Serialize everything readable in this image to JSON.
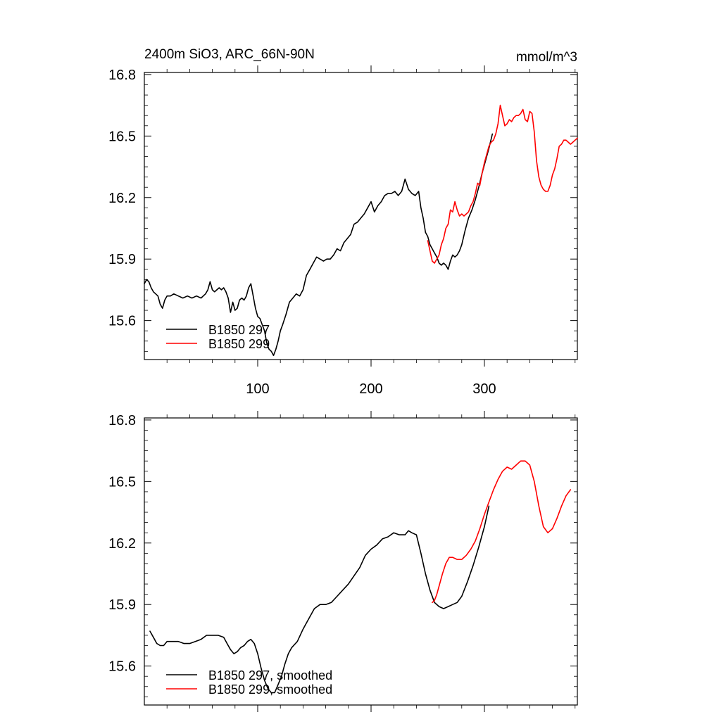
{
  "colors": {
    "black": "#000000",
    "red": "#ff0000",
    "background": "#ffffff"
  },
  "chart_data": [
    {
      "type": "line",
      "title_left": "2400m SiO3, ARC_66N-90N",
      "title_right": "mmol/m^3",
      "xlabel": "",
      "ylabel": "",
      "xlim": [
        0,
        382
      ],
      "ylim": [
        15.41,
        16.81
      ],
      "yticks": [
        "15.6",
        "15.9",
        "16.2",
        "16.5",
        "16.8"
      ],
      "xticks": [
        "100",
        "200",
        "300"
      ],
      "grid": false,
      "legend_position": "bottom-left",
      "series": [
        {
          "name": "B1850 297",
          "color": "#000000",
          "x": [
            0,
            2,
            4,
            6,
            8,
            10,
            12,
            14,
            16,
            18,
            20,
            23,
            26,
            30,
            34,
            38,
            42,
            46,
            50,
            54,
            56,
            58,
            60,
            62,
            64,
            66,
            68,
            70,
            72,
            74,
            76,
            78,
            80,
            82,
            84,
            86,
            88,
            90,
            92,
            94,
            96,
            98,
            100,
            102,
            104,
            106,
            108,
            110,
            112,
            114,
            116,
            118,
            120,
            122,
            125,
            128,
            131,
            134,
            137,
            140,
            143,
            146,
            149,
            152,
            155,
            158,
            161,
            164,
            167,
            170,
            173,
            176,
            179,
            182,
            185,
            188,
            191,
            194,
            197,
            200,
            203,
            206,
            209,
            212,
            215,
            218,
            221,
            224,
            227,
            230,
            233,
            236,
            239,
            242,
            244,
            246,
            248,
            250,
            252,
            254,
            256,
            258,
            260,
            262,
            264,
            266,
            268,
            270,
            272,
            274,
            276,
            278,
            280,
            283,
            286,
            289,
            292,
            295,
            298,
            301,
            304,
            307
          ],
          "y": [
            15.78,
            15.8,
            15.79,
            15.76,
            15.74,
            15.73,
            15.72,
            15.68,
            15.66,
            15.7,
            15.72,
            15.72,
            15.73,
            15.72,
            15.71,
            15.72,
            15.71,
            15.72,
            15.71,
            15.73,
            15.75,
            15.79,
            15.75,
            15.74,
            15.75,
            15.76,
            15.75,
            15.76,
            15.74,
            15.71,
            15.64,
            15.69,
            15.65,
            15.66,
            15.7,
            15.71,
            15.7,
            15.72,
            15.76,
            15.78,
            15.72,
            15.66,
            15.62,
            15.61,
            15.58,
            15.55,
            15.49,
            15.46,
            15.45,
            15.43,
            15.46,
            15.5,
            15.55,
            15.58,
            15.63,
            15.69,
            15.71,
            15.73,
            15.72,
            15.75,
            15.82,
            15.85,
            15.88,
            15.91,
            15.9,
            15.89,
            15.9,
            15.9,
            15.92,
            15.95,
            15.94,
            15.98,
            16.0,
            16.02,
            16.07,
            16.08,
            16.1,
            16.12,
            16.15,
            16.18,
            16.13,
            16.16,
            16.18,
            16.21,
            16.22,
            16.22,
            16.23,
            16.21,
            16.23,
            16.29,
            16.24,
            16.22,
            16.21,
            16.23,
            16.15,
            16.1,
            16.03,
            16.01,
            15.97,
            15.95,
            15.93,
            15.91,
            15.88,
            15.87,
            15.88,
            15.87,
            15.85,
            15.89,
            15.92,
            15.91,
            15.92,
            15.94,
            15.97,
            16.04,
            16.1,
            16.14,
            16.19,
            16.25,
            16.32,
            16.38,
            16.44,
            16.51
          ]
        },
        {
          "name": "B1850 299",
          "color": "#ff0000",
          "x": [
            250,
            252,
            254,
            256,
            258,
            260,
            262,
            264,
            266,
            268,
            270,
            272,
            274,
            276,
            278,
            280,
            282,
            284,
            286,
            288,
            290,
            292,
            294,
            296,
            298,
            300,
            302,
            304,
            306,
            308,
            310,
            312,
            314,
            316,
            318,
            320,
            322,
            324,
            326,
            328,
            330,
            332,
            334,
            336,
            338,
            340,
            342,
            344,
            346,
            348,
            350,
            352,
            354,
            356,
            358,
            360,
            362,
            364,
            366,
            368,
            370,
            372,
            374,
            376,
            378,
            380,
            382
          ],
          "y": [
            15.99,
            15.94,
            15.89,
            15.88,
            15.9,
            15.92,
            15.97,
            16.0,
            16.05,
            16.07,
            16.14,
            16.13,
            16.18,
            16.14,
            16.11,
            16.12,
            16.11,
            16.12,
            16.13,
            16.16,
            16.18,
            16.22,
            16.27,
            16.26,
            16.32,
            16.37,
            16.41,
            16.45,
            16.47,
            16.48,
            16.51,
            16.56,
            16.65,
            16.6,
            16.55,
            16.56,
            16.58,
            16.57,
            16.59,
            16.6,
            16.6,
            16.61,
            16.63,
            16.58,
            16.57,
            16.62,
            16.61,
            16.52,
            16.38,
            16.3,
            16.26,
            16.24,
            16.23,
            16.23,
            16.26,
            16.31,
            16.34,
            16.39,
            16.45,
            16.46,
            16.48,
            16.48,
            16.47,
            16.46,
            16.47,
            16.48,
            16.49
          ]
        }
      ]
    },
    {
      "type": "line",
      "title_left": "",
      "title_right": "",
      "xlabel": "",
      "ylabel": "",
      "xlim": [
        0,
        382
      ],
      "ylim": [
        15.41,
        16.81
      ],
      "yticks": [
        "15.6",
        "15.9",
        "16.2",
        "16.5",
        "16.8"
      ],
      "xticks": [],
      "grid": false,
      "legend_position": "bottom-left",
      "series": [
        {
          "name": "B1850 297, smoothed",
          "color": "#000000",
          "x": [
            5,
            8,
            11,
            14,
            17,
            20,
            25,
            30,
            35,
            40,
            45,
            50,
            55,
            60,
            65,
            70,
            73,
            76,
            79,
            82,
            85,
            88,
            91,
            94,
            97,
            100,
            103,
            106,
            109,
            112,
            115,
            118,
            121,
            124,
            127,
            130,
            135,
            140,
            145,
            150,
            155,
            160,
            165,
            170,
            175,
            180,
            185,
            190,
            195,
            200,
            205,
            210,
            215,
            220,
            225,
            230,
            233,
            236,
            240,
            244,
            248,
            252,
            256,
            260,
            264,
            268,
            272,
            276,
            280,
            285,
            290,
            295,
            300,
            304
          ],
          "y": [
            15.77,
            15.74,
            15.71,
            15.7,
            15.7,
            15.72,
            15.72,
            15.72,
            15.71,
            15.71,
            15.72,
            15.73,
            15.75,
            15.75,
            15.75,
            15.74,
            15.71,
            15.68,
            15.66,
            15.67,
            15.69,
            15.7,
            15.72,
            15.73,
            15.71,
            15.66,
            15.59,
            15.53,
            15.49,
            15.47,
            15.47,
            15.51,
            15.55,
            15.61,
            15.66,
            15.69,
            15.72,
            15.78,
            15.83,
            15.88,
            15.9,
            15.9,
            15.91,
            15.94,
            15.97,
            16.0,
            16.04,
            16.08,
            16.14,
            16.17,
            16.19,
            16.22,
            16.23,
            16.25,
            16.24,
            16.24,
            16.26,
            16.25,
            16.24,
            16.15,
            16.05,
            15.97,
            15.91,
            15.89,
            15.88,
            15.89,
            15.9,
            15.91,
            15.94,
            16.01,
            16.09,
            16.18,
            16.28,
            16.38
          ]
        },
        {
          "name": "B1850 299, smoothed",
          "color": "#ff0000",
          "x": [
            254,
            256,
            258,
            260,
            263,
            266,
            269,
            272,
            276,
            280,
            284,
            288,
            292,
            296,
            300,
            304,
            308,
            312,
            316,
            320,
            324,
            328,
            332,
            336,
            340,
            344,
            348,
            352,
            356,
            360,
            364,
            368,
            372,
            376
          ],
          "y": [
            15.91,
            15.92,
            15.95,
            15.99,
            16.05,
            16.1,
            16.13,
            16.13,
            16.12,
            16.12,
            16.14,
            16.17,
            16.21,
            16.27,
            16.34,
            16.4,
            16.46,
            16.51,
            16.55,
            16.57,
            16.56,
            16.58,
            16.6,
            16.6,
            16.58,
            16.5,
            16.38,
            16.28,
            16.25,
            16.27,
            16.32,
            16.38,
            16.43,
            16.46
          ]
        }
      ]
    }
  ]
}
